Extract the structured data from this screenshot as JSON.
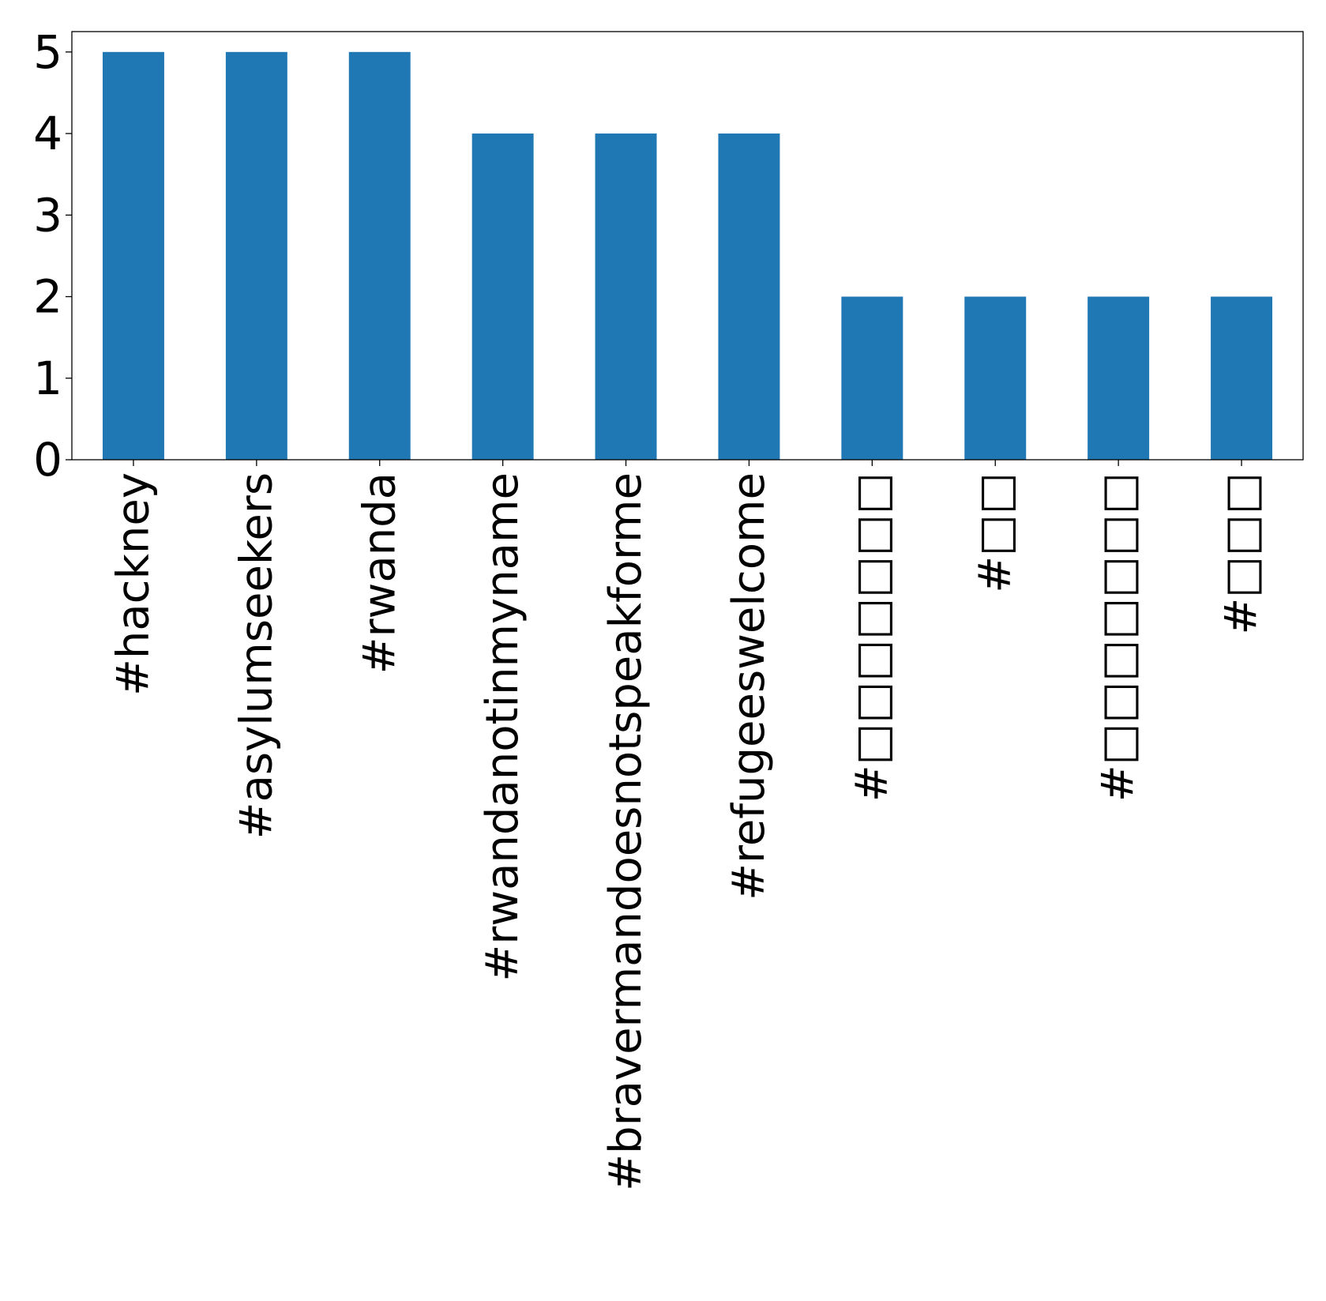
{
  "colors": {
    "bar": "#1f77b4",
    "axis": "#000000",
    "background": "#ffffff"
  },
  "chart_data": {
    "type": "bar",
    "categories": [
      "#hackney",
      "#asylumseekers",
      "#rwanda",
      "#rwandanotinmyname",
      "#bravermandoesnotspeakforme",
      "#refugeeswelcome",
      "#□□□□□□□",
      "#□□",
      "#□□□□□□□",
      "#□□□"
    ],
    "values": [
      5,
      5,
      5,
      4,
      4,
      4,
      2,
      2,
      2,
      2
    ],
    "title": "",
    "xlabel": "",
    "ylabel": "",
    "ylim": [
      0,
      5.25
    ],
    "yticks": [
      "0",
      "1",
      "2",
      "3",
      "4",
      "5"
    ],
    "grid": false,
    "legend": "none"
  }
}
